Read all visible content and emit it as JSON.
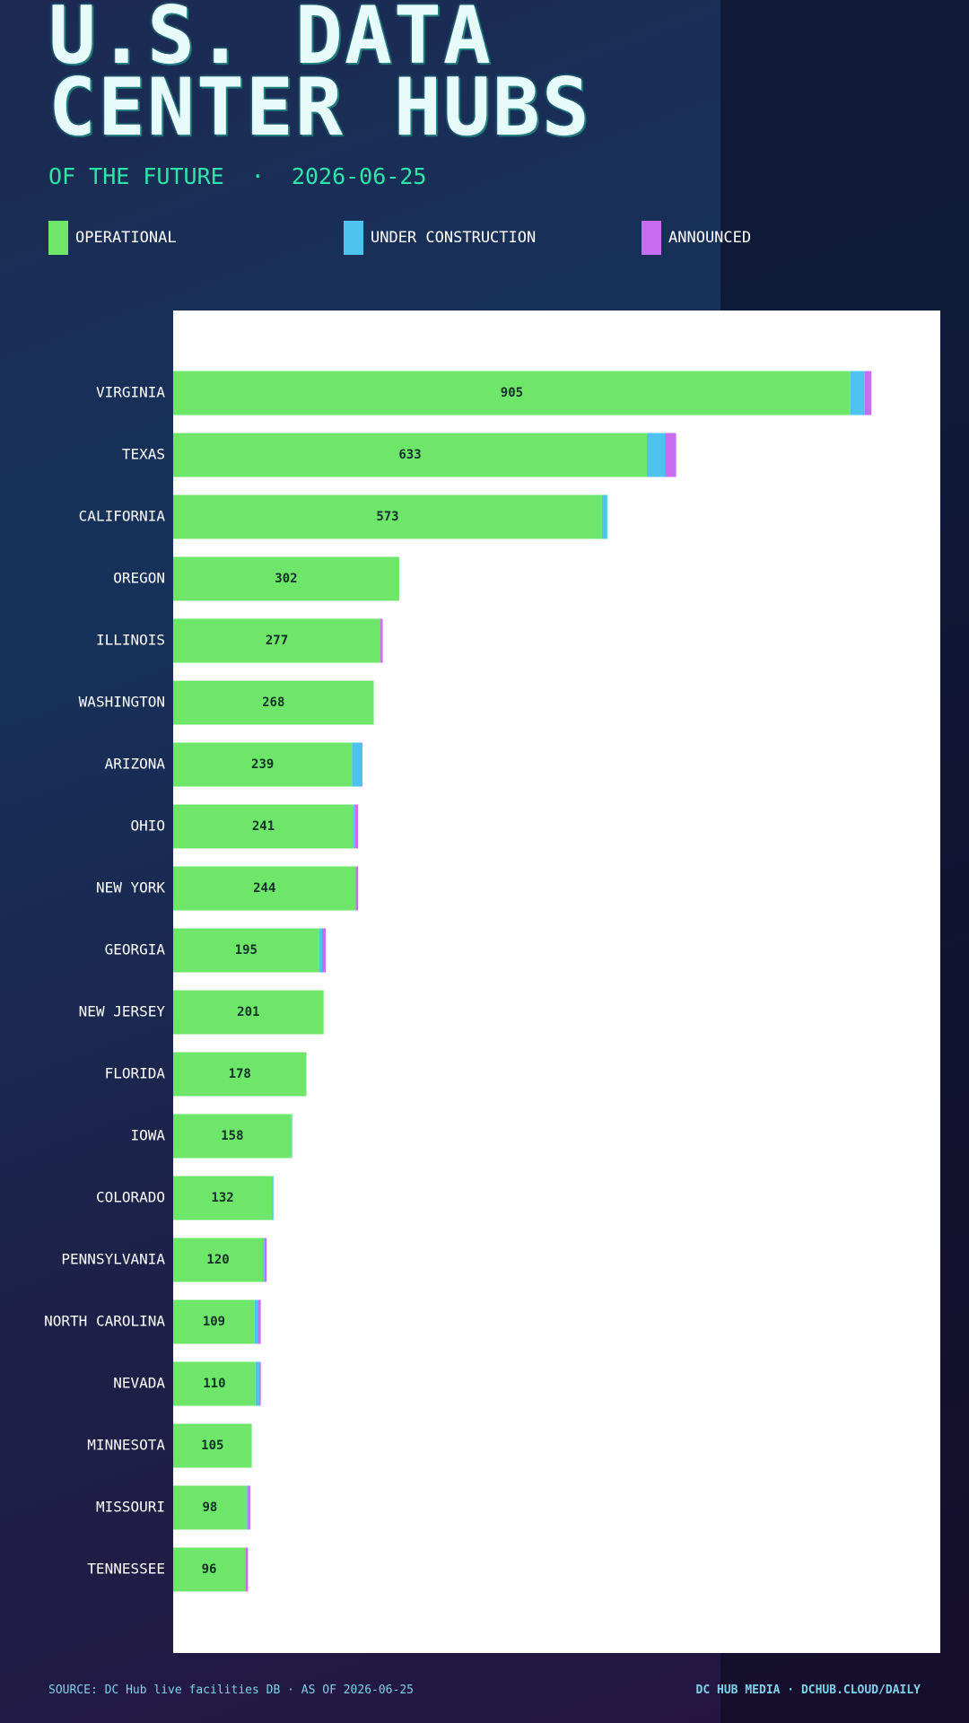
{
  "chart_data": {
    "type": "stacked-bar-horizontal",
    "title": "U.S. DATA CENTER HUBS",
    "subtitle": "OF THE FUTURE  ·  2026-06-25",
    "source": "SOURCE: DC Hub live facilities DB · AS OF 2026-06-25",
    "credit": "DC HUB MEDIA · DCHUB.CLOUD/DAILY",
    "categories": [
      "VIRGINIA",
      "TEXAS",
      "CALIFORNIA",
      "OREGON",
      "ILLINOIS",
      "WASHINGTON",
      "ARIZONA",
      "OHIO",
      "NEW YORK",
      "GEORGIA",
      "NEW JERSEY",
      "FLORIDA",
      "IOWA",
      "COLORADO",
      "PENNSYLVANIA",
      "NORTH CAROLINA",
      "NEVADA",
      "MINNESOTA",
      "MISSOURI",
      "TENNESSEE"
    ],
    "series": [
      {
        "name": "OPERATIONAL",
        "color": "#6ee66a",
        "values": [
          905,
          633,
          573,
          302,
          277,
          268,
          239,
          241,
          244,
          195,
          201,
          178,
          158,
          132,
          120,
          109,
          110,
          105,
          98,
          96
        ]
      },
      {
        "name": "UNDER CONSTRUCTION",
        "color": "#4fc3f0",
        "values": [
          19,
          24,
          7,
          0,
          0,
          0,
          14,
          2,
          0,
          4,
          0,
          0,
          1,
          2,
          2,
          4,
          5,
          0,
          2,
          1
        ]
      },
      {
        "name": "ANNOUNCED",
        "color": "#c86cf0",
        "values": [
          9,
          15,
          0,
          0,
          3,
          0,
          0,
          4,
          3,
          5,
          0,
          0,
          0,
          0,
          3,
          4,
          2,
          0,
          3,
          3
        ]
      }
    ],
    "xlim": [
      0,
      1025
    ]
  }
}
